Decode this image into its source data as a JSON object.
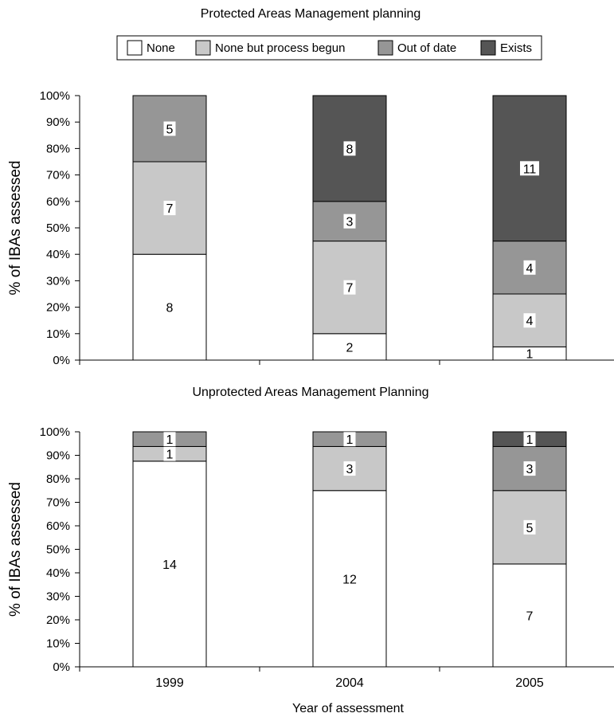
{
  "legend": {
    "items": [
      {
        "label": "None",
        "color": "#ffffff"
      },
      {
        "label": "None but process begun",
        "color": "#c8c8c8"
      },
      {
        "label": "Out of date",
        "color": "#969696"
      },
      {
        "label": "Exists",
        "color": "#555555"
      }
    ]
  },
  "chart_data": [
    {
      "type": "bar",
      "stacked": true,
      "title": "Protected Areas Management planning",
      "ylabel": "% of IBAs assessed",
      "xlabel": "",
      "ylim": [
        0,
        100
      ],
      "yticks": [
        "0%",
        "10%",
        "20%",
        "30%",
        "40%",
        "50%",
        "60%",
        "70%",
        "80%",
        "90%",
        "100%"
      ],
      "categories": [
        "1999",
        "2004",
        "2005"
      ],
      "show_category_labels": false,
      "legend_position": "top",
      "series": [
        {
          "name": "None",
          "values": [
            40,
            10,
            5
          ],
          "labels": [
            "8",
            "2",
            "1"
          ]
        },
        {
          "name": "None but process begun",
          "values": [
            35,
            35,
            20
          ],
          "labels": [
            "7",
            "7",
            "4"
          ]
        },
        {
          "name": "Out of date",
          "values": [
            25,
            15,
            20
          ],
          "labels": [
            "5",
            "3",
            "4"
          ]
        },
        {
          "name": "Exists",
          "values": [
            0,
            40,
            55
          ],
          "labels": [
            "",
            "8",
            "11"
          ]
        }
      ]
    },
    {
      "type": "bar",
      "stacked": true,
      "title": "Unprotected Areas Management Planning",
      "ylabel": "% of IBAs assessed",
      "xlabel": "Year of assessment",
      "ylim": [
        0,
        100
      ],
      "yticks": [
        "0%",
        "10%",
        "20%",
        "30%",
        "40%",
        "50%",
        "60%",
        "70%",
        "80%",
        "90%",
        "100%"
      ],
      "categories": [
        "1999",
        "2004",
        "2005"
      ],
      "show_category_labels": true,
      "series": [
        {
          "name": "None",
          "values": [
            87.5,
            75,
            43.75
          ],
          "labels": [
            "14",
            "12",
            "7"
          ]
        },
        {
          "name": "None but process begun",
          "values": [
            6.25,
            18.75,
            31.25
          ],
          "labels": [
            "1",
            "3",
            "5"
          ]
        },
        {
          "name": "Out of date",
          "values": [
            6.25,
            6.25,
            18.75
          ],
          "labels": [
            "1",
            "1",
            "3"
          ]
        },
        {
          "name": "Exists",
          "values": [
            0,
            0,
            6.25
          ],
          "labels": [
            "",
            "",
            "1"
          ]
        }
      ]
    }
  ]
}
